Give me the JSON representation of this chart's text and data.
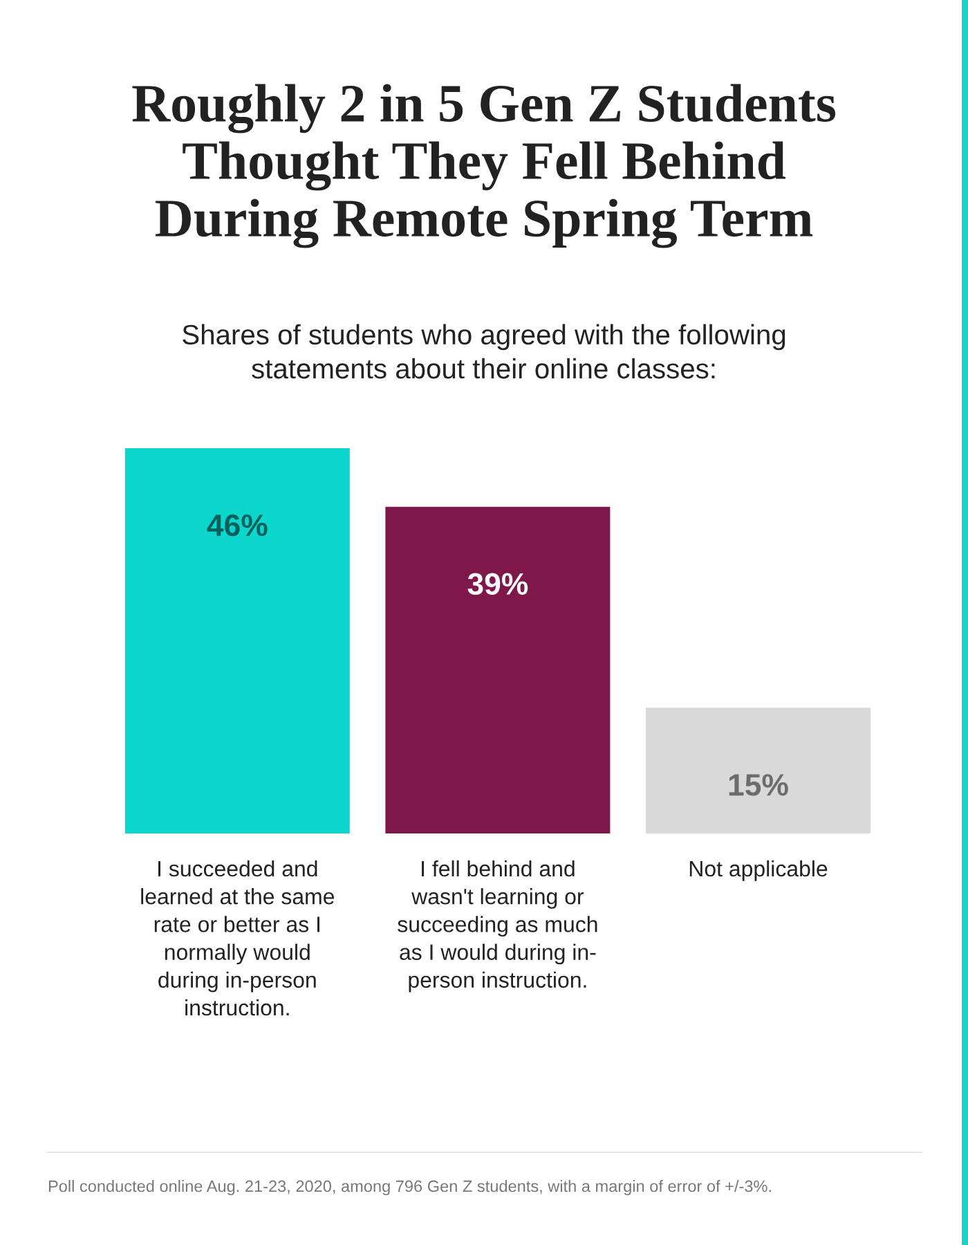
{
  "chart_data": {
    "type": "bar",
    "title": "Roughly 2 in 5 Gen Z Students\nThought They Fell Behind\nDuring Remote Spring Term",
    "subtitle": "Shares of students who agreed with the following\nstatements about their online classes:",
    "categories": [
      "I succeeded and\nlearned at the same\nrate or better as I\nnormally would\nduring in-person\ninstruction.",
      "I fell behind and\nwasn't learning or\nsucceeding as much\nas I would during in-\nperson instruction.",
      "Not applicable"
    ],
    "values": [
      46,
      39,
      15
    ],
    "colors": [
      "#0dd6cc",
      "#80174b",
      "#d9d9d9"
    ],
    "data_labels": true,
    "value_labels": [
      "46%",
      "39%",
      "15%"
    ],
    "annotations": [
      "Poll conducted online Aug. 21-23, 2020, among 796 Gen Z students, with a margin of error of +/-3%."
    ]
  }
}
